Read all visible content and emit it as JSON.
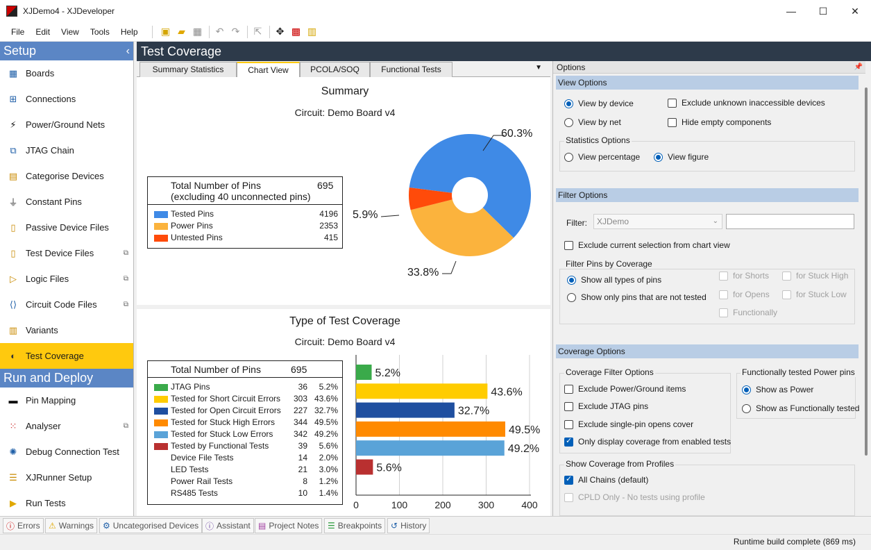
{
  "window": {
    "title": "XJDemo4 - XJDeveloper",
    "minimize": "—",
    "maximize": "☐",
    "close": "✕"
  },
  "menu": [
    "File",
    "Edit",
    "View",
    "Tools",
    "Help"
  ],
  "sidebar": {
    "setup_title": "Setup",
    "setup_items": [
      {
        "label": "Boards",
        "icon": "boards-icon"
      },
      {
        "label": "Connections",
        "icon": "connections-icon"
      },
      {
        "label": "Power/Ground Nets",
        "icon": "power-icon"
      },
      {
        "label": "JTAG Chain",
        "icon": "jtag-icon"
      },
      {
        "label": "Categorise Devices",
        "icon": "categorise-icon"
      },
      {
        "label": "Constant Pins",
        "icon": "constant-pins-icon"
      },
      {
        "label": "Passive Device Files",
        "icon": "passive-icon"
      },
      {
        "label": "Test Device Files",
        "icon": "test-device-icon"
      },
      {
        "label": "Logic Files",
        "icon": "logic-icon"
      },
      {
        "label": "Circuit Code Files",
        "icon": "code-icon"
      },
      {
        "label": "Variants",
        "icon": "variants-icon"
      },
      {
        "label": "Test Coverage",
        "icon": "coverage-icon"
      }
    ],
    "run_title": "Run and Deploy",
    "run_items": [
      {
        "label": "Pin Mapping",
        "icon": "pin-mapping-icon"
      },
      {
        "label": "Analyser",
        "icon": "analyser-icon"
      },
      {
        "label": "Debug Connection Test",
        "icon": "debug-icon"
      },
      {
        "label": "XJRunner Setup",
        "icon": "xjrunner-icon"
      },
      {
        "label": "Run Tests",
        "icon": "run-icon"
      }
    ]
  },
  "main": {
    "title": "Test Coverage",
    "tabs": [
      "Summary Statistics",
      "Chart View",
      "PCOLA/SOQ",
      "Functional Tests"
    ],
    "active_tab": "Chart View"
  },
  "summary": {
    "title": "Summary",
    "subtitle": "Circuit: Demo Board v4",
    "total_label": "Total Number of Pins",
    "total_sub": "(excluding 40 unconnected pins)",
    "total_value": "695",
    "rows": [
      {
        "label": "Tested Pins",
        "value": "4196",
        "color": "#3f8ae6"
      },
      {
        "label": "Power Pins",
        "value": "2353",
        "color": "#fbb33d"
      },
      {
        "label": "Untested Pins",
        "value": "415",
        "color": "#ff4b0a"
      }
    ]
  },
  "chart_data": [
    {
      "type": "pie",
      "title": "Summary",
      "subtitle": "Circuit: Demo Board v4",
      "labels": [
        "Tested Pins",
        "Power Pins",
        "Untested Pins"
      ],
      "values": [
        60.3,
        33.8,
        5.9
      ],
      "display_labels": [
        "60.3%",
        "33.8%",
        "5.9%"
      ],
      "colors": [
        "#3f8ae6",
        "#fbb33d",
        "#ff4b0a"
      ],
      "donut": true
    },
    {
      "type": "bar",
      "orientation": "horizontal",
      "title": "Type of Test Coverage",
      "subtitle": "Circuit: Demo Board v4",
      "categories": [
        "JTAG Pins",
        "Tested for Short Circuit Errors",
        "Tested for Open Circuit Errors",
        "Tested for Stuck High Errors",
        "Tested for Stuck Low Errors",
        "Tested by Functional Tests"
      ],
      "values": [
        36,
        303,
        227,
        344,
        342,
        39
      ],
      "display_labels": [
        "5.2%",
        "43.6%",
        "32.7%",
        "49.5%",
        "49.2%",
        "5.6%"
      ],
      "colors": [
        "#3aaa4a",
        "#ffcc00",
        "#1f4fa0",
        "#ff8a00",
        "#5aa3d8",
        "#b93030"
      ],
      "xlim": [
        0,
        400
      ],
      "xticks": [
        "0",
        "100",
        "200",
        "300",
        "400"
      ],
      "grid": true
    }
  ],
  "coverage": {
    "title": "Type of Test Coverage",
    "subtitle": "Circuit: Demo Board v4",
    "total_label": "Total Number of Pins",
    "total_value": "695",
    "rows": [
      {
        "label": "JTAG Pins",
        "value": "36",
        "pct": "5.2%",
        "color": "#3aaa4a"
      },
      {
        "label": "Tested for Short Circuit Errors",
        "value": "303",
        "pct": "43.6%",
        "color": "#ffcc00"
      },
      {
        "label": "Tested for Open Circuit Errors",
        "value": "227",
        "pct": "32.7%",
        "color": "#1f4fa0"
      },
      {
        "label": "Tested for Stuck High Errors",
        "value": "344",
        "pct": "49.5%",
        "color": "#ff8a00"
      },
      {
        "label": "Tested for Stuck Low Errors",
        "value": "342",
        "pct": "49.2%",
        "color": "#5aa3d8"
      },
      {
        "label": "Tested by Functional Tests",
        "value": "39",
        "pct": "5.6%",
        "color": "#b93030"
      },
      {
        "label": "Device File Tests",
        "value": "14",
        "pct": "2.0%",
        "color": ""
      },
      {
        "label": "LED Tests",
        "value": "21",
        "pct": "3.0%",
        "color": ""
      },
      {
        "label": "Power Rail Tests",
        "value": "8",
        "pct": "1.2%",
        "color": ""
      },
      {
        "label": "RS485 Tests",
        "value": "10",
        "pct": "1.4%",
        "color": ""
      }
    ]
  },
  "options": {
    "title": "Options",
    "view_options": {
      "head": "View Options",
      "by_device": "View by device",
      "by_net": "View by net",
      "exclude_unknown": "Exclude unknown inaccessible devices",
      "hide_empty": "Hide empty components",
      "stats_group": "Statistics Options",
      "view_percentage": "View percentage",
      "view_figure": "View figure"
    },
    "filter_options": {
      "head": "Filter Options",
      "filter_label": "Filter:",
      "filter_value": "XJDemo",
      "exclude_selection": "Exclude current selection from chart view",
      "by_coverage_group": "Filter Pins by Coverage",
      "show_all": "Show all types of pins",
      "show_not_tested": "Show only pins that are not tested",
      "for_shorts": "for Shorts",
      "for_stuck_high": "for Stuck High",
      "for_opens": "for Opens",
      "for_stuck_low": "for Stuck Low",
      "functionally": "Functionally"
    },
    "coverage_options": {
      "head": "Coverage Options",
      "filter_group": "Coverage Filter Options",
      "exclude_power": "Exclude Power/Ground items",
      "exclude_jtag": "Exclude JTAG pins",
      "exclude_single": "Exclude single-pin opens cover",
      "only_enabled": "Only display coverage from enabled tests",
      "power_group": "Functionally tested Power pins",
      "show_as_power": "Show as Power",
      "show_as_func": "Show as Functionally tested",
      "profiles_group": "Show Coverage from Profiles",
      "all_chains": "All Chains (default)",
      "cpld_only": "CPLD Only - No tests using profile"
    }
  },
  "bottom_tabs": [
    {
      "label": "Errors",
      "icon": "error-icon"
    },
    {
      "label": "Warnings",
      "icon": "warning-icon"
    },
    {
      "label": "Uncategorised Devices",
      "icon": "uncategorised-icon"
    },
    {
      "label": "Assistant",
      "icon": "assistant-icon"
    },
    {
      "label": "Project Notes",
      "icon": "notes-icon"
    },
    {
      "label": "Breakpoints",
      "icon": "breakpoints-icon"
    },
    {
      "label": "History",
      "icon": "history-icon"
    }
  ],
  "status": "Runtime build complete (869 ms)"
}
